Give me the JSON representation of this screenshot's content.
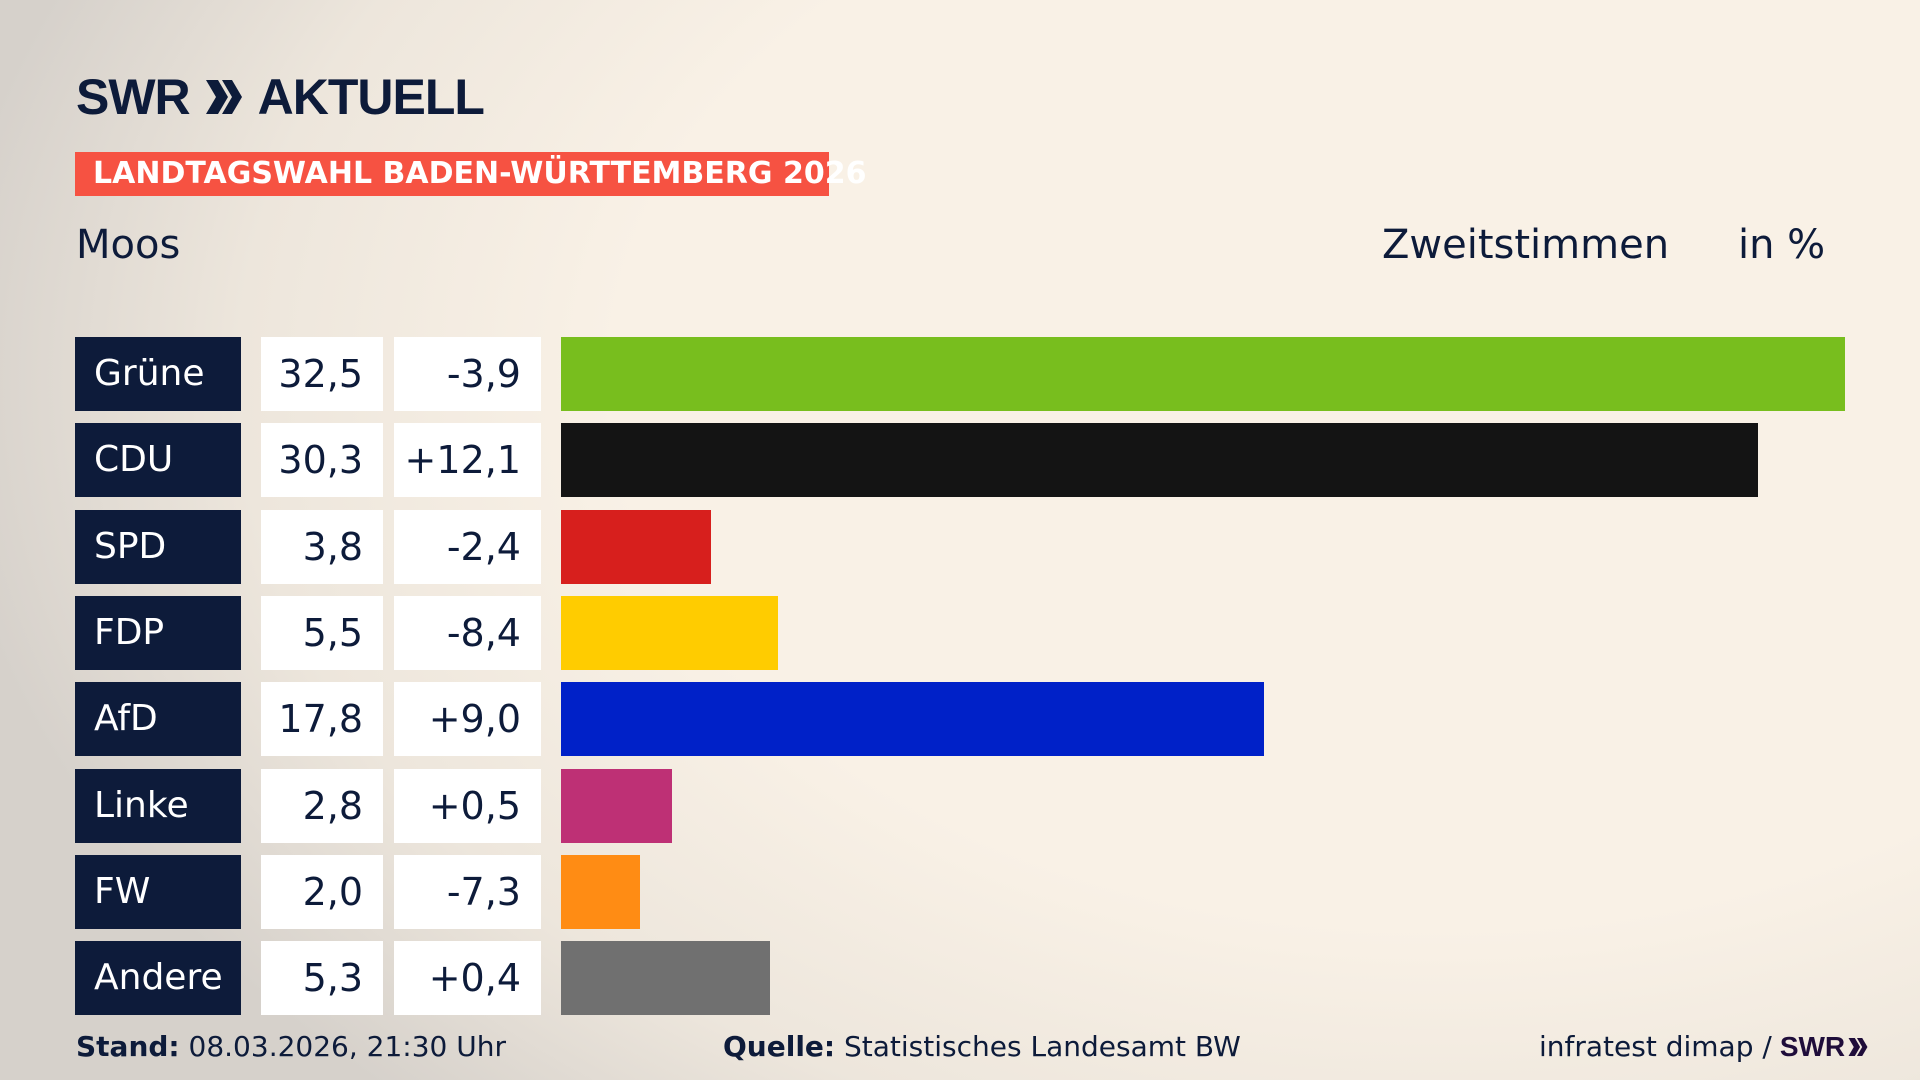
{
  "header": {
    "logo_text": "SWR AKTUELL",
    "logo_swr": "SWR",
    "logo_aktuell": "AKTUELL",
    "banner": "LANDTAGSWAHL BADEN-WÜRTTEMBERG 2026",
    "region": "Moos",
    "vote_type": "Zweitstimmen",
    "unit": "in %"
  },
  "chart_data": {
    "type": "bar",
    "orientation": "horizontal",
    "title": "Moos – Zweitstimmen in %",
    "categories": [
      "Grüne",
      "CDU",
      "SPD",
      "FDP",
      "AfD",
      "Linke",
      "FW",
      "Andere"
    ],
    "values": [
      32.5,
      30.3,
      3.8,
      5.5,
      17.8,
      2.8,
      2.0,
      5.3
    ],
    "value_labels": [
      "32,5",
      "30,3",
      "3,8",
      "5,5",
      "17,8",
      "2,8",
      "2,0",
      "5,3"
    ],
    "change_labels": [
      "-3,9",
      "+12,1",
      "-2,4",
      "-8,4",
      "+9,0",
      "+0,5",
      "-7,3",
      "+0,4"
    ],
    "changes": [
      -3.9,
      12.1,
      -2.4,
      -8.4,
      9.0,
      0.5,
      -7.3,
      0.4
    ],
    "colors": [
      "#78be1e",
      "#141414",
      "#d71f1d",
      "#ffcc00",
      "#0021c8",
      "#be3075",
      "#ff8c14",
      "#707070"
    ],
    "xlim": [
      0,
      32.5
    ]
  },
  "footer": {
    "stand_label": "Stand:",
    "stand_value": "08.03.2026, 21:30 Uhr",
    "source_label": "Quelle:",
    "source_value": "Statistisches Landesamt BW",
    "credit": "infratest dimap /",
    "credit_logo": "SWR"
  }
}
